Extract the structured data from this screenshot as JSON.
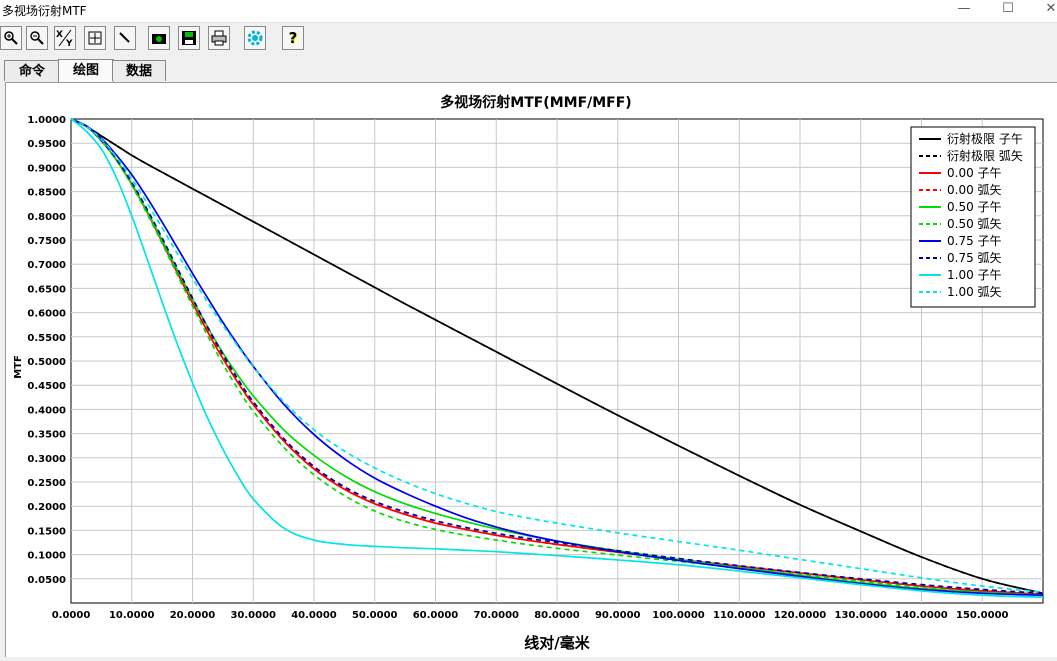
{
  "window": {
    "title": "多视场衍射MTF"
  },
  "tabs": [
    {
      "label": "命令"
    },
    {
      "label": "绘图"
    },
    {
      "label": "数据"
    }
  ],
  "toolbar_icons": [
    "zoom-in-icon",
    "zoom-out-icon",
    "xy-axes-icon",
    "fit-view-icon",
    "pencil-icon",
    "camera-icon",
    "save-icon",
    "print-icon",
    "settings-gear-icon",
    "help-icon"
  ],
  "chart_data": {
    "type": "line",
    "title": "多视场衍射MTF(MMF/MFF)",
    "xlabel": "线对/毫米",
    "ylabel": "MTF",
    "xlim": [
      0,
      160
    ],
    "ylim": [
      0,
      1.0
    ],
    "grid": true,
    "legend_position": "top-right",
    "x_ticks": [
      "0.0000",
      "10.0000",
      "20.0000",
      "30.0000",
      "40.0000",
      "50.0000",
      "60.0000",
      "70.0000",
      "80.0000",
      "90.0000",
      "100.0000",
      "110.0000",
      "120.0000",
      "130.0000",
      "140.0000",
      "150.0000"
    ],
    "y_ticks": [
      "1.0000",
      "0.9500",
      "0.9000",
      "0.8500",
      "0.8000",
      "0.7500",
      "0.7000",
      "0.6500",
      "0.6000",
      "0.5500",
      "0.5000",
      "0.4500",
      "0.4000",
      "0.3500",
      "0.3000",
      "0.2500",
      "0.2000",
      "0.1500",
      "0.1000",
      "0.0500"
    ],
    "x": [
      0,
      2.5,
      5,
      7.5,
      10,
      12.5,
      15,
      17.5,
      20,
      22.5,
      25,
      27.5,
      30,
      35,
      40,
      45,
      50,
      55,
      60,
      65,
      70,
      75,
      80,
      90,
      100,
      110,
      120,
      130,
      140,
      150,
      160
    ],
    "series": [
      {
        "name": "衍射极限 子午",
        "color": "#000000",
        "dash": false,
        "values": [
          1.0,
          0.985,
          0.965,
          0.945,
          0.925,
          0.907,
          0.89,
          0.873,
          0.856,
          0.839,
          0.822,
          0.805,
          0.788,
          0.754,
          0.72,
          0.686,
          0.652,
          0.618,
          0.585,
          0.552,
          0.519,
          0.486,
          0.453,
          0.388,
          0.325,
          0.263,
          0.203,
          0.148,
          0.095,
          0.05,
          0.02
        ]
      },
      {
        "name": "衍射极限 弧矢",
        "color": "#000000",
        "dash": true,
        "values": [
          1.0,
          0.985,
          0.965,
          0.945,
          0.925,
          0.907,
          0.89,
          0.873,
          0.856,
          0.839,
          0.822,
          0.805,
          0.788,
          0.754,
          0.72,
          0.686,
          0.652,
          0.618,
          0.585,
          0.552,
          0.519,
          0.486,
          0.453,
          0.388,
          0.325,
          0.263,
          0.203,
          0.148,
          0.095,
          0.05,
          0.02
        ]
      },
      {
        "name": "0.00 子午",
        "color": "#ff0000",
        "dash": false,
        "values": [
          1.0,
          0.985,
          0.955,
          0.915,
          0.865,
          0.808,
          0.746,
          0.682,
          0.62,
          0.56,
          0.505,
          0.455,
          0.41,
          0.335,
          0.277,
          0.235,
          0.205,
          0.183,
          0.165,
          0.152,
          0.14,
          0.13,
          0.121,
          0.105,
          0.09,
          0.076,
          0.062,
          0.048,
          0.035,
          0.025,
          0.018
        ]
      },
      {
        "name": "0.00 弧矢",
        "color": "#ff0000",
        "dash": true,
        "values": [
          1.0,
          0.985,
          0.955,
          0.916,
          0.868,
          0.812,
          0.752,
          0.69,
          0.628,
          0.567,
          0.511,
          0.46,
          0.414,
          0.338,
          0.28,
          0.237,
          0.206,
          0.184,
          0.166,
          0.152,
          0.14,
          0.13,
          0.121,
          0.105,
          0.09,
          0.076,
          0.062,
          0.048,
          0.036,
          0.026,
          0.018
        ]
      },
      {
        "name": "0.50 子午",
        "color": "#00dd00",
        "dash": false,
        "values": [
          1.0,
          0.985,
          0.955,
          0.915,
          0.866,
          0.81,
          0.75,
          0.688,
          0.628,
          0.57,
          0.517,
          0.47,
          0.428,
          0.358,
          0.305,
          0.263,
          0.23,
          0.205,
          0.185,
          0.168,
          0.153,
          0.14,
          0.128,
          0.108,
          0.09,
          0.073,
          0.057,
          0.042,
          0.03,
          0.022,
          0.016
        ]
      },
      {
        "name": "0.50 弧矢",
        "color": "#00dd00",
        "dash": true,
        "values": [
          1.0,
          0.985,
          0.955,
          0.914,
          0.863,
          0.805,
          0.743,
          0.678,
          0.614,
          0.552,
          0.494,
          0.442,
          0.396,
          0.322,
          0.265,
          0.222,
          0.19,
          0.168,
          0.152,
          0.14,
          0.13,
          0.121,
          0.113,
          0.099,
          0.086,
          0.073,
          0.059,
          0.045,
          0.032,
          0.022,
          0.016
        ]
      },
      {
        "name": "0.75 子午",
        "color": "#0000ee",
        "dash": false,
        "values": [
          1.0,
          0.986,
          0.96,
          0.925,
          0.885,
          0.838,
          0.787,
          0.734,
          0.681,
          0.63,
          0.58,
          0.533,
          0.489,
          0.411,
          0.348,
          0.298,
          0.258,
          0.227,
          0.2,
          0.176,
          0.157,
          0.141,
          0.128,
          0.106,
          0.088,
          0.071,
          0.055,
          0.04,
          0.028,
          0.02,
          0.016
        ]
      },
      {
        "name": "0.75 弧矢",
        "color": "#0000aa",
        "dash": true,
        "values": [
          1.0,
          0.985,
          0.956,
          0.917,
          0.869,
          0.814,
          0.754,
          0.692,
          0.63,
          0.57,
          0.514,
          0.462,
          0.416,
          0.34,
          0.282,
          0.24,
          0.21,
          0.188,
          0.17,
          0.156,
          0.144,
          0.134,
          0.125,
          0.108,
          0.092,
          0.077,
          0.063,
          0.05,
          0.038,
          0.028,
          0.02
        ]
      },
      {
        "name": "1.00 子午",
        "color": "#00e5e5",
        "dash": false,
        "values": [
          1.0,
          0.975,
          0.938,
          0.878,
          0.8,
          0.712,
          0.622,
          0.535,
          0.455,
          0.382,
          0.318,
          0.262,
          0.215,
          0.155,
          0.13,
          0.121,
          0.117,
          0.114,
          0.112,
          0.109,
          0.106,
          0.102,
          0.098,
          0.089,
          0.079,
          0.066,
          0.052,
          0.038,
          0.025,
          0.016,
          0.012
        ]
      },
      {
        "name": "1.00 弧矢",
        "color": "#00e5e5",
        "dash": true,
        "values": [
          1.0,
          0.985,
          0.958,
          0.921,
          0.877,
          0.827,
          0.775,
          0.722,
          0.671,
          0.621,
          0.574,
          0.53,
          0.488,
          0.416,
          0.358,
          0.314,
          0.279,
          0.25,
          0.226,
          0.206,
          0.189,
          0.176,
          0.165,
          0.145,
          0.127,
          0.109,
          0.09,
          0.071,
          0.052,
          0.035,
          0.022
        ]
      }
    ]
  }
}
